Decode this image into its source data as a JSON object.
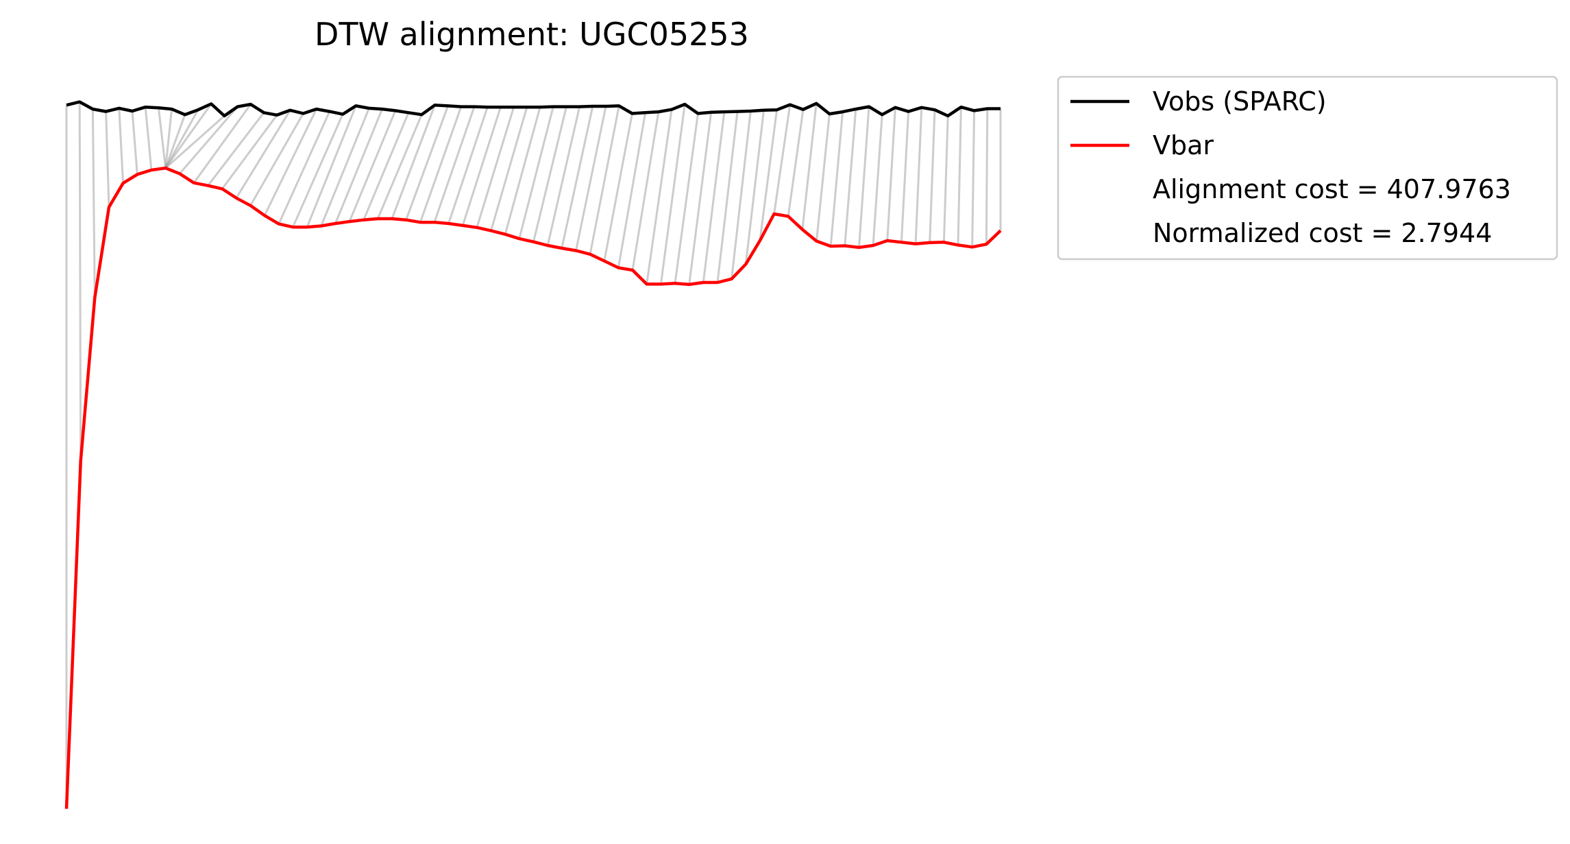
{
  "chart_data": {
    "type": "line",
    "title": "DTW alignment: UGC05253",
    "xlabel": "",
    "ylabel": "",
    "axes_visible": false,
    "grid": false,
    "legend_position": "outside-top-right",
    "series": [
      {
        "name": "Vobs (SPARC)",
        "color": "#000000",
        "values": [
          238.0,
          238.8,
          237.0,
          236.4,
          237.2,
          236.5,
          237.5,
          237.3,
          237.0,
          235.6,
          236.8,
          238.3,
          235.3,
          237.6,
          238.2,
          236.1,
          235.5,
          236.7,
          235.9,
          237.0,
          236.4,
          235.7,
          237.8,
          237.2,
          237.0,
          236.6,
          236.1,
          235.6,
          238.0,
          237.8,
          237.6,
          237.6,
          237.5,
          237.5,
          237.5,
          237.5,
          237.5,
          237.6,
          237.6,
          237.6,
          237.7,
          237.7,
          237.8,
          235.9,
          236.1,
          236.3,
          236.9,
          238.2,
          235.9,
          236.2,
          236.3,
          236.4,
          236.5,
          236.7,
          236.8,
          238.1,
          236.9,
          238.4,
          235.8,
          236.3,
          237.0,
          237.6,
          235.6,
          237.4,
          236.4,
          237.4,
          236.8,
          235.3,
          237.5,
          236.6,
          237.1,
          237.1
        ]
      },
      {
        "name": "Vbar",
        "color": "#ff0000",
        "values": [
          61.5,
          148.7,
          189.7,
          212.4,
          218.4,
          220.6,
          221.7,
          222.2,
          220.8,
          218.5,
          217.8,
          217.0,
          214.7,
          212.8,
          210.3,
          208.2,
          207.4,
          207.4,
          207.7,
          208.3,
          208.8,
          209.2,
          209.5,
          209.5,
          209.2,
          208.6,
          208.6,
          208.3,
          207.8,
          207.3,
          206.5,
          205.6,
          204.5,
          203.7,
          202.8,
          202.1,
          201.5,
          200.6,
          198.9,
          197.2,
          196.6,
          193.1,
          193.1,
          193.3,
          193.0,
          193.5,
          193.5,
          194.4,
          198.1,
          204.0,
          210.7,
          210.1,
          206.8,
          203.9,
          202.6,
          202.7,
          202.3,
          202.8,
          204.0,
          203.6,
          203.2,
          203.5,
          203.6,
          202.9,
          202.4,
          203.1,
          206.5
        ]
      }
    ],
    "alignment_lines": {
      "color": "#888888",
      "description_hidden": true
    },
    "legend": {
      "entries": [
        {
          "label": "Vobs (SPARC)",
          "color": "#000000"
        },
        {
          "label": "Vbar",
          "color": "#ff0000"
        },
        {
          "label": "Alignment cost = 407.9763",
          "color": null
        },
        {
          "label": "Normalized cost = 2.7944",
          "color": null
        }
      ]
    }
  }
}
